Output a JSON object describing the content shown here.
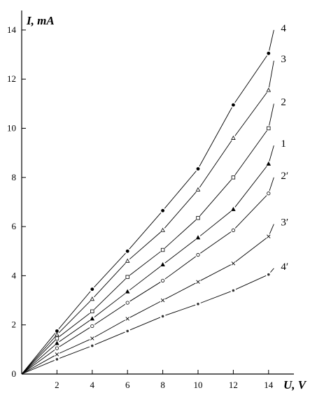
{
  "chart_data": {
    "type": "line",
    "xlabel": "U, V",
    "ylabel": "I, mA",
    "xlim": [
      0,
      15.2
    ],
    "ylim": [
      0,
      14.6
    ],
    "x_ticks": [
      2,
      4,
      6,
      8,
      10,
      12,
      14
    ],
    "y_ticks": [
      0,
      2,
      4,
      6,
      8,
      10,
      12,
      14
    ],
    "x": [
      2,
      4,
      6,
      8,
      10,
      12,
      14
    ],
    "grid": false,
    "series": [
      {
        "name": "4",
        "marker": "filled-circle",
        "values": [
          1.75,
          3.45,
          5.0,
          6.65,
          8.35,
          10.95,
          13.05
        ],
        "end": [
          14.3,
          14.0
        ]
      },
      {
        "name": "3",
        "marker": "open-triangle",
        "values": [
          1.6,
          3.05,
          4.6,
          5.85,
          7.5,
          9.6,
          11.55
        ],
        "end": [
          14.3,
          12.75
        ]
      },
      {
        "name": "2",
        "marker": "open-square",
        "values": [
          1.45,
          2.55,
          3.95,
          5.05,
          6.35,
          8.0,
          10.0
        ],
        "end": [
          14.3,
          11.0
        ]
      },
      {
        "name": "1",
        "marker": "filled-triangle",
        "values": [
          1.25,
          2.25,
          3.35,
          4.45,
          5.55,
          6.7,
          8.55
        ],
        "end": [
          14.3,
          9.3
        ]
      },
      {
        "name": "2′",
        "marker": "open-circle",
        "values": [
          1.05,
          1.95,
          2.9,
          3.8,
          4.85,
          5.85,
          7.35
        ],
        "end": [
          14.3,
          8.0
        ]
      },
      {
        "name": "3′",
        "marker": "cross",
        "values": [
          0.8,
          1.45,
          2.25,
          3.0,
          3.75,
          4.5,
          5.6
        ],
        "end": [
          14.3,
          6.1
        ]
      },
      {
        "name": "4′",
        "marker": "small-dot",
        "values": [
          0.6,
          1.15,
          1.75,
          2.35,
          2.85,
          3.4,
          4.05
        ],
        "end": [
          14.3,
          4.3
        ]
      }
    ]
  }
}
